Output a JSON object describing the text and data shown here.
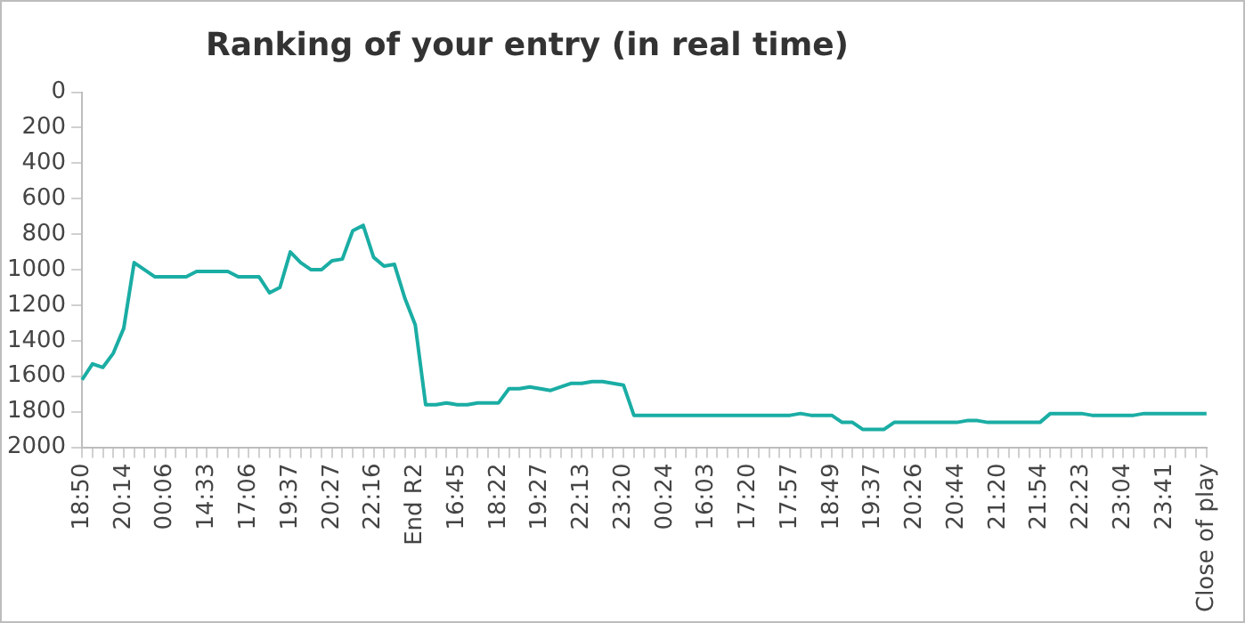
{
  "chart_data": {
    "type": "line",
    "title": "Ranking of your entry (in real time)",
    "categories": [
      "18:50",
      null,
      null,
      null,
      "20:14",
      null,
      null,
      null,
      "00:06",
      null,
      null,
      null,
      "14:33",
      null,
      null,
      null,
      "17:06",
      null,
      null,
      null,
      "19:37",
      null,
      null,
      null,
      "20:27",
      null,
      null,
      null,
      "22:16",
      null,
      null,
      null,
      "End R2",
      null,
      null,
      null,
      "16:45",
      null,
      null,
      null,
      "18:22",
      null,
      null,
      null,
      "19:27",
      null,
      null,
      null,
      "22:13",
      null,
      null,
      null,
      "23:20",
      null,
      null,
      null,
      "00:24",
      null,
      null,
      null,
      "16:03",
      null,
      null,
      null,
      "17:20",
      null,
      null,
      null,
      "17:57",
      null,
      null,
      null,
      "18:49",
      null,
      null,
      null,
      "19:37",
      null,
      null,
      null,
      "20:26",
      null,
      null,
      null,
      "20:44",
      null,
      null,
      null,
      "21:20",
      null,
      null,
      null,
      "21:54",
      null,
      null,
      null,
      "22:23",
      null,
      null,
      null,
      "23:04",
      null,
      null,
      null,
      "23:41",
      null,
      null,
      null,
      "Close of play"
    ],
    "series": [
      {
        "color": "#1aada4",
        "values": [
          1620,
          1530,
          1550,
          1470,
          1330,
          960,
          1000,
          1040,
          1040,
          1040,
          1040,
          1010,
          1010,
          1010,
          1010,
          1040,
          1040,
          1040,
          1130,
          1100,
          900,
          960,
          1000,
          1000,
          950,
          940,
          780,
          750,
          930,
          980,
          970,
          1160,
          1310,
          1760,
          1760,
          1750,
          1760,
          1760,
          1750,
          1750,
          1750,
          1670,
          1670,
          1660,
          1670,
          1680,
          1660,
          1640,
          1640,
          1630,
          1630,
          1640,
          1650,
          1820,
          1820,
          1820,
          1820,
          1820,
          1820,
          1820,
          1820,
          1820,
          1820,
          1820,
          1820,
          1820,
          1820,
          1820,
          1820,
          1810,
          1820,
          1820,
          1820,
          1860,
          1860,
          1900,
          1900,
          1900,
          1860,
          1860,
          1860,
          1860,
          1860,
          1860,
          1860,
          1850,
          1850,
          1860,
          1860,
          1860,
          1860,
          1860,
          1860,
          1810,
          1810,
          1810,
          1810,
          1820,
          1820,
          1820,
          1820,
          1820,
          1810,
          1810,
          1810,
          1810,
          1810,
          1810,
          1810
        ]
      }
    ],
    "ylim": [
      2000,
      0
    ],
    "yticks": [
      0,
      200,
      400,
      600,
      800,
      1000,
      1200,
      1400,
      1600,
      1800,
      2000
    ],
    "grid": false,
    "legend": false,
    "marker": "none",
    "line_style": "solid"
  }
}
